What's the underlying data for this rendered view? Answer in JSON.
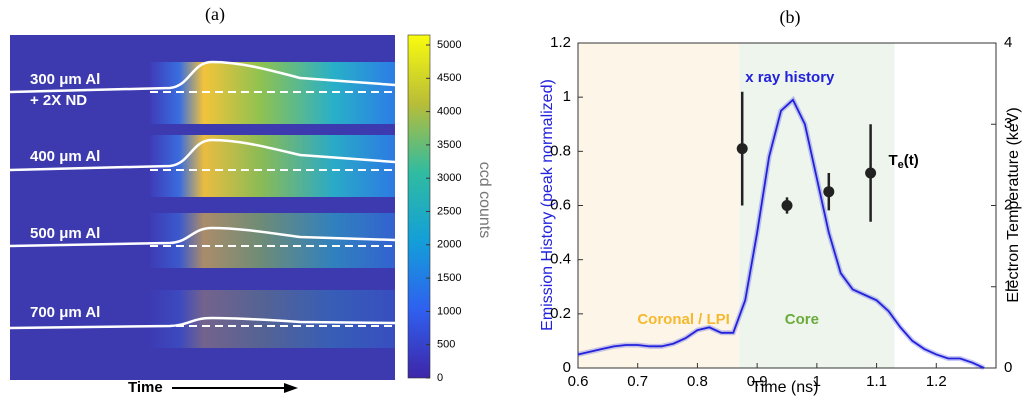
{
  "chart_data": [
    {
      "type": "image",
      "title": "(a)",
      "annotations": [
        "300 μm Al",
        "+ 2X ND",
        "400 μm Al",
        "500 μm Al",
        "700 μm Al"
      ],
      "xlabel": "Time",
      "colorbar_label": "ccd counts",
      "clim": [
        0,
        5150
      ],
      "cticks": [
        0,
        500,
        1000,
        1500,
        2000,
        2500,
        3000,
        3500,
        4000,
        4500,
        5000
      ]
    },
    {
      "type": "line",
      "title": "(b)",
      "xlabel": "Time (ns)",
      "ylabel": "Emission History (peak normalized)",
      "y2label": "Electron Temperature (keV)",
      "xlim": [
        0.6,
        1.3
      ],
      "xticks": [
        0.6,
        0.7,
        0.8,
        0.9,
        1,
        1.1,
        1.2
      ],
      "ylim": [
        0,
        1.2
      ],
      "yticks": [
        0,
        0.2,
        0.4,
        0.6,
        0.8,
        1,
        1.2
      ],
      "y2lim": [
        0,
        4
      ],
      "y2ticks": [
        0,
        1,
        2,
        3,
        4
      ],
      "regions": [
        {
          "label": "Coronal / LPI",
          "xlim": [
            0.6,
            0.87
          ],
          "color": "#fdf6e8",
          "label_color": "#f5b82e"
        },
        {
          "label": "Core",
          "xlim": [
            0.87,
            1.13
          ],
          "color": "#eef5ec",
          "label_color": "#6aab3c"
        }
      ],
      "x": [
        0.6,
        0.62,
        0.64,
        0.66,
        0.68,
        0.7,
        0.72,
        0.74,
        0.76,
        0.78,
        0.8,
        0.82,
        0.84,
        0.86,
        0.88,
        0.9,
        0.92,
        0.94,
        0.96,
        0.98,
        1,
        1.02,
        1.04,
        1.06,
        1.08,
        1.1,
        1.12,
        1.14,
        1.16,
        1.18,
        1.2,
        1.22,
        1.24,
        1.26,
        1.28
      ],
      "series": [
        {
          "name": "x ray history",
          "color": "#2222dd",
          "values": [
            0.05,
            0.06,
            0.07,
            0.08,
            0.085,
            0.085,
            0.08,
            0.08,
            0.09,
            0.11,
            0.14,
            0.15,
            0.13,
            0.13,
            0.25,
            0.5,
            0.78,
            0.95,
            0.99,
            0.9,
            0.7,
            0.5,
            0.35,
            0.29,
            0.27,
            0.25,
            0.21,
            0.15,
            0.1,
            0.07,
            0.05,
            0.035,
            0.035,
            0.02,
            0
          ]
        }
      ],
      "points": {
        "axis": "y2",
        "color": "#222222",
        "x": [
          0.875,
          0.95,
          1.02,
          1.09
        ],
        "values": [
          2.7,
          2.0,
          2.17,
          2.4
        ],
        "errors": [
          0.7,
          0.1,
          0.23,
          0.6
        ],
        "label": {
          "text": "T",
          "sub": "e",
          "suffix": "(t)"
        }
      }
    }
  ]
}
